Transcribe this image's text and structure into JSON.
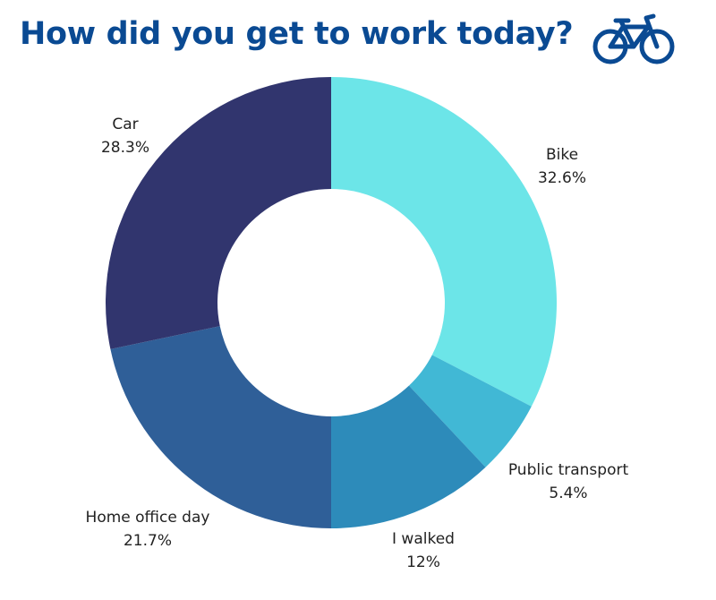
{
  "title": "How did you get to work today?",
  "icon": "bicycle-icon",
  "colors": {
    "title": "#0a4a93",
    "icon": "#0a4a93"
  },
  "chart_data": {
    "type": "pie",
    "donut": true,
    "title": "How did you get to work today?",
    "legend": "none",
    "slices": [
      {
        "label": "Bike",
        "value": 32.6,
        "display": "32.6%",
        "color": "#6ce5e8"
      },
      {
        "label": "Public transport",
        "value": 5.4,
        "display": "5.4%",
        "color": "#41b8d5"
      },
      {
        "label": "I walked",
        "value": 12,
        "display": "12%",
        "color": "#2d8bba"
      },
      {
        "label": "Home office day",
        "value": 21.7,
        "display": "21.7%",
        "color": "#2f5f98"
      },
      {
        "label": "Car",
        "value": 28.3,
        "display": "28.3%",
        "color": "#31356e"
      }
    ]
  }
}
